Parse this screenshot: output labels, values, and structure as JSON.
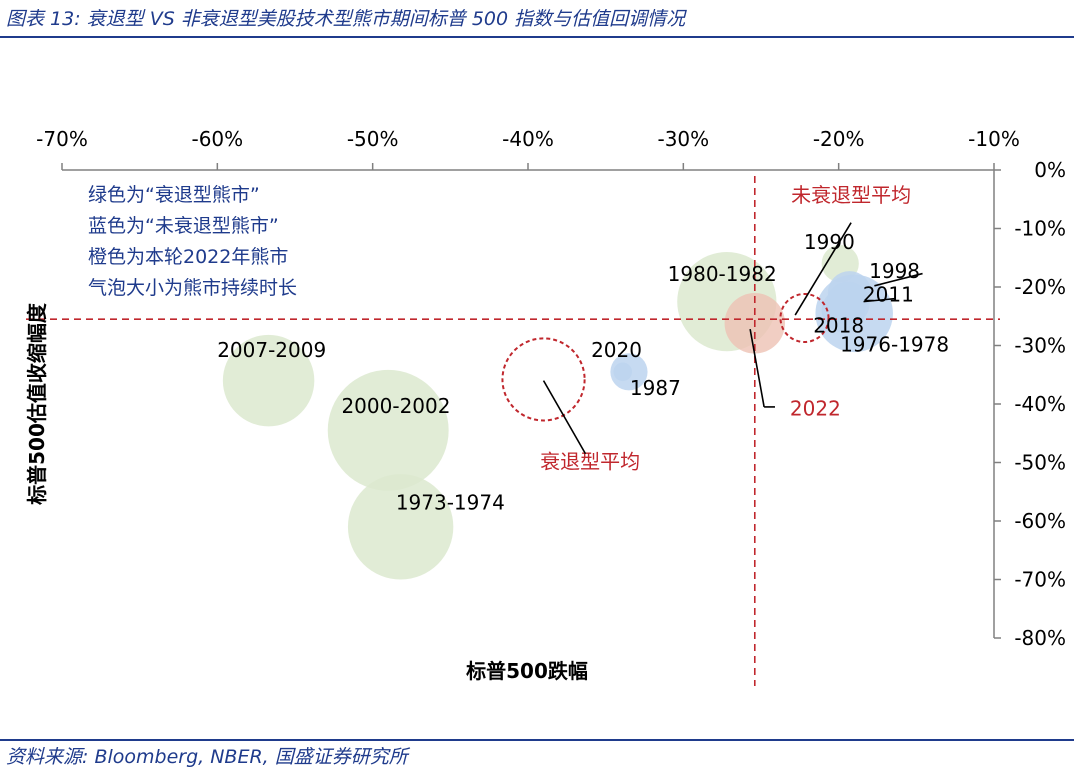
{
  "title": "图表 13: 衰退型 VS 非衰退型美股技术型熊市期间标普 500 指数与估值回调情况",
  "source": "资料来源: Bloomberg, NBER, 国盛证券研究所",
  "chart_data": {
    "type": "bubble",
    "xlabel": "标普500跌幅",
    "ylabel": "标普500估值收缩幅度",
    "xlim": [
      -0.7,
      -0.1
    ],
    "ylim": [
      -0.8,
      0.0
    ],
    "x_ticks": [
      -0.7,
      -0.6,
      -0.5,
      -0.4,
      -0.3,
      -0.2,
      -0.1
    ],
    "y_ticks": [
      0.0,
      -0.1,
      -0.2,
      -0.3,
      -0.4,
      -0.5,
      -0.6,
      -0.7,
      -0.8
    ],
    "x_tick_labels": [
      "-70%",
      "-60%",
      "-50%",
      "-40%",
      "-30%",
      "-20%",
      "-10%"
    ],
    "y_tick_labels": [
      "0%",
      "-10%",
      "-20%",
      "-30%",
      "-40%",
      "-50%",
      "-60%",
      "-70%",
      "-80%"
    ],
    "x_axis_position": "top",
    "y_axis_position": "right",
    "grid": false,
    "legend_notes": [
      "绿色为“衰退型熊市”",
      "蓝色为“未衰退型熊市”",
      "橙色为本轮2022年熊市",
      "气泡大小为熊市持续时长"
    ],
    "colors": {
      "recession": "#dce9cf",
      "non_recession": "#bcd3ee",
      "current": "#eec2b4",
      "reference": "#c0272d",
      "axis": "#808080"
    },
    "series": [
      {
        "category": "recession",
        "points": [
          {
            "label": "2007-2009",
            "x": -0.567,
            "y": -0.36,
            "size": 0.295
          },
          {
            "label": "2000-2002",
            "x": -0.49,
            "y": -0.445,
            "size": 0.39
          },
          {
            "label": "1973-1974",
            "x": -0.482,
            "y": -0.61,
            "size": 0.34
          },
          {
            "label": "1980-1982",
            "x": -0.272,
            "y": -0.225,
            "size": 0.32
          },
          {
            "label": "1990",
            "x": -0.199,
            "y": -0.16,
            "size": 0.12
          }
        ]
      },
      {
        "category": "non_recession",
        "points": [
          {
            "label": "1987",
            "x": -0.335,
            "y": -0.345,
            "size": 0.12
          },
          {
            "label": "1976-1978",
            "x": -0.19,
            "y": -0.245,
            "size": 0.25
          },
          {
            "label": "1998",
            "x": -0.193,
            "y": -0.21,
            "size": 0.14
          },
          {
            "label": "2011",
            "x": -0.194,
            "y": -0.228,
            "size": 0.14
          },
          {
            "label": "2018",
            "x": -0.197,
            "y": -0.24,
            "size": 0.14
          },
          {
            "label": "2020",
            "x": -0.339,
            "y": -0.345,
            "size": 0.06
          }
        ]
      },
      {
        "category": "current",
        "points": [
          {
            "label": "2022",
            "x": -0.254,
            "y": -0.262,
            "size": 0.195
          }
        ]
      }
    ],
    "averages": [
      {
        "label": "衰退型平均",
        "x": -0.39,
        "y": -0.358,
        "size": 0.265
      },
      {
        "label": "未衰退型平均",
        "x": -0.222,
        "y": -0.253,
        "size": 0.155
      }
    ],
    "reference_lines": {
      "x": -0.254,
      "y": -0.255
    }
  }
}
